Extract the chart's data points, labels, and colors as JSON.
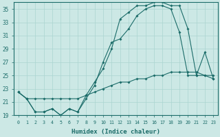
{
  "xlabel": "Humidex (Indice chaleur)",
  "bg_color": "#cce8e5",
  "line_color": "#1a6b68",
  "grid_color": "#aad4d0",
  "xlim_min": -0.5,
  "xlim_max": 23.5,
  "ylim_min": 19,
  "ylim_max": 36,
  "yticks": [
    19,
    21,
    23,
    25,
    27,
    29,
    31,
    33,
    35
  ],
  "xticks": [
    0,
    1,
    2,
    3,
    4,
    5,
    6,
    7,
    8,
    9,
    10,
    11,
    12,
    13,
    14,
    15,
    16,
    17,
    18,
    19,
    20,
    21,
    22,
    23
  ],
  "line1_x": [
    0,
    1,
    2,
    3,
    4,
    5,
    6,
    7,
    8,
    9,
    10,
    11,
    12,
    13,
    14,
    15,
    16,
    17,
    18,
    19,
    20,
    21,
    22,
    23
  ],
  "line1_y": [
    22.5,
    21.5,
    21.5,
    21.5,
    21.5,
    21.5,
    21.5,
    21.5,
    22.0,
    22.5,
    23.0,
    23.5,
    24.0,
    24.0,
    24.5,
    24.5,
    25.0,
    25.0,
    25.5,
    25.5,
    25.5,
    25.5,
    25.0,
    25.0
  ],
  "line2_x": [
    0,
    1,
    2,
    3,
    4,
    5,
    6,
    7,
    8,
    9,
    10,
    11,
    12,
    13,
    14,
    15,
    16,
    17,
    18,
    19,
    20,
    21,
    22,
    23
  ],
  "line2_y": [
    22.5,
    21.5,
    19.5,
    19.5,
    20.0,
    19.0,
    20.0,
    19.5,
    21.5,
    23.5,
    27.0,
    30.0,
    30.5,
    32.0,
    34.0,
    35.0,
    35.5,
    35.5,
    35.0,
    31.5,
    25.0,
    25.0,
    25.0,
    24.5
  ],
  "line3_x": [
    0,
    1,
    2,
    3,
    4,
    5,
    6,
    7,
    8,
    9,
    10,
    11,
    12,
    13,
    14,
    15,
    16,
    17,
    18,
    19,
    20,
    21,
    22,
    23
  ],
  "line3_y": [
    22.5,
    21.5,
    19.5,
    19.5,
    20.0,
    19.0,
    20.0,
    19.5,
    22.0,
    24.0,
    26.0,
    29.0,
    33.5,
    34.5,
    35.5,
    35.5,
    36.0,
    36.0,
    35.5,
    35.5,
    32.0,
    25.0,
    28.5,
    24.5
  ]
}
